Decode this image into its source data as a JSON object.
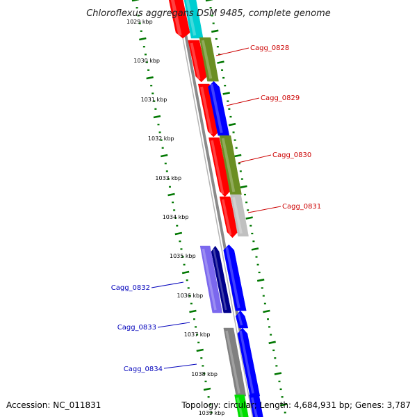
{
  "title": "Chloroflexus aggregans DSM 9485, complete genome",
  "footer": {
    "accession": "Accession: NC_011831",
    "topology": "Topology: circular; Length: 4,684,931 bp; Genes: 3,787"
  },
  "colors": {
    "red": "#ff0000",
    "olive": "#6b8e23",
    "blue": "#0000ff",
    "navy": "#00008b",
    "lavender": "#7b68ee",
    "gray": "#808080",
    "lightgray": "#c0c0c0",
    "cyan": "#00ced1",
    "green": "#00dd00",
    "tick": "#007700",
    "label_red": "#cc0000",
    "label_blue": "#0000bb"
  },
  "scale": {
    "labels": [
      "1029 kbp",
      "1030 kbp",
      "1031 kbp",
      "1032 kbp",
      "1033 kbp",
      "1034 kbp",
      "1035 kbp",
      "1036 kbp",
      "1037 kbp",
      "1038 kbp",
      "1039 kbp"
    ]
  },
  "labels": {
    "red": [
      "Cagg_0828",
      "Cagg_0829",
      "Cagg_0830",
      "Cagg_0831"
    ],
    "blue": [
      "Cagg_0832",
      "Cagg_0833",
      "Cagg_0834"
    ]
  }
}
